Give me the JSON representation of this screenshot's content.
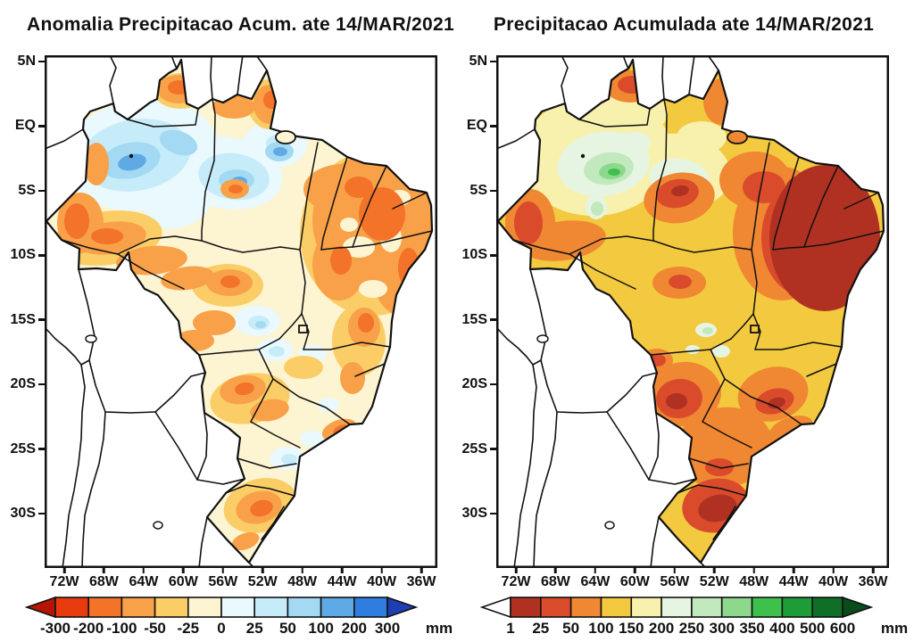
{
  "panels": {
    "left": {
      "title": "Anomalia Precipitacao Acum. ate 14/MAR/2021",
      "lat_ticks": [
        "5N",
        "EQ",
        "5S",
        "10S",
        "15S",
        "20S",
        "25S",
        "30S"
      ],
      "lon_ticks": [
        "72W",
        "68W",
        "64W",
        "60W",
        "56W",
        "52W",
        "48W",
        "44W",
        "40W",
        "36W"
      ],
      "colorbar": {
        "unit": "mm",
        "labels": [
          "-300",
          "-200",
          "-100",
          "-50",
          "-25",
          "0",
          "25",
          "50",
          "100",
          "200",
          "300"
        ],
        "segment_colors": [
          "#e83c0f",
          "#f37329",
          "#f9a149",
          "#fbcd66",
          "#fdf4d2",
          "#e9f9fd",
          "#c7ecf9",
          "#a3d9f3",
          "#5fa9e5",
          "#2e7ddf"
        ],
        "arrow_left_color": "#b51505",
        "arrow_right_color": "#1d3fb2"
      }
    },
    "right": {
      "title": "Precipitacao Acumulada ate 14/MAR/2021",
      "lat_ticks": [
        "5N",
        "EQ",
        "5S",
        "10S",
        "15S",
        "20S",
        "25S",
        "30S"
      ],
      "lon_ticks": [
        "72W",
        "68W",
        "64W",
        "60W",
        "56W",
        "52W",
        "48W",
        "44W",
        "40W",
        "36W"
      ],
      "colorbar": {
        "unit": "mm",
        "labels": [
          "1",
          "25",
          "50",
          "100",
          "150",
          "200",
          "250",
          "300",
          "350",
          "400",
          "500",
          "600"
        ],
        "segment_colors": [
          "#b03122",
          "#d94b2b",
          "#f08732",
          "#f3c93f",
          "#f8f0ad",
          "#e6f5e2",
          "#c1e9bd",
          "#8ed88c",
          "#3fc04d",
          "#1d9c38",
          "#0f6f27"
        ],
        "arrow_left_color": "#ffffff",
        "arrow_right_color": "#0a4c1b"
      }
    }
  },
  "chart_data": [
    {
      "type": "heatmap",
      "subtype": "filled-contour-map",
      "title": "Anomalia Precipitacao Acum. ate 14/MAR/2021",
      "region": "Brazil / South America",
      "xlabel": "longitude",
      "ylabel": "latitude",
      "x_ticks": [
        "72W",
        "68W",
        "64W",
        "60W",
        "56W",
        "52W",
        "48W",
        "44W",
        "40W",
        "36W"
      ],
      "y_ticks": [
        "5N",
        "EQ",
        "5S",
        "10S",
        "15S",
        "20S",
        "25S",
        "30S"
      ],
      "unit": "mm",
      "levels": [
        -300,
        -200,
        -100,
        -50,
        -25,
        0,
        25,
        50,
        100,
        200,
        300
      ],
      "level_colors": [
        "#e83c0f",
        "#f37329",
        "#f9a149",
        "#fbcd66",
        "#fdf4d2",
        "#e9f9fd",
        "#c7ecf9",
        "#a3d9f3",
        "#5fa9e5",
        "#2e7ddf"
      ],
      "legend_position": "bottom",
      "grid": false,
      "pattern_summary": "Negative anomalies (-25 to -300 mm, yellow/orange/red) dominate northeastern, central and far-western Brazil and Rio Grande do Sul; positive anomalies (+25 to +300 mm, light to medium blue) cover northwestern Amazonas, the lower Amazon mouth and scattered parts of the central-west and Sao Paulo coast."
    },
    {
      "type": "heatmap",
      "subtype": "filled-contour-map",
      "title": "Precipitacao Acumulada ate 14/MAR/2021",
      "region": "Brazil / South America",
      "xlabel": "longitude",
      "ylabel": "latitude",
      "x_ticks": [
        "72W",
        "68W",
        "64W",
        "60W",
        "56W",
        "52W",
        "48W",
        "44W",
        "40W",
        "36W"
      ],
      "y_ticks": [
        "5N",
        "EQ",
        "5S",
        "10S",
        "15S",
        "20S",
        "25S",
        "30S"
      ],
      "unit": "mm",
      "levels": [
        1,
        25,
        50,
        100,
        150,
        200,
        250,
        300,
        350,
        400,
        500,
        600
      ],
      "level_colors": [
        "#b03122",
        "#d94b2b",
        "#f08732",
        "#f3c93f",
        "#f8f0ad",
        "#e6f5e2",
        "#c1e9bd",
        "#8ed88c",
        "#3fc04d",
        "#1d9c38",
        "#0f6f27"
      ],
      "legend_position": "bottom",
      "grid": false,
      "pattern_summary": "Low accumulated totals (1-100 mm, brown/red/orange) over eastern Northeast Brazil, Minas Gerais, Mato Grosso do Sul and Rio Grande do Sul; 100-200 mm (yellow) over central Brazil; 200-400 mm (pale yellow to green) over northwestern Amazonas."
    }
  ]
}
